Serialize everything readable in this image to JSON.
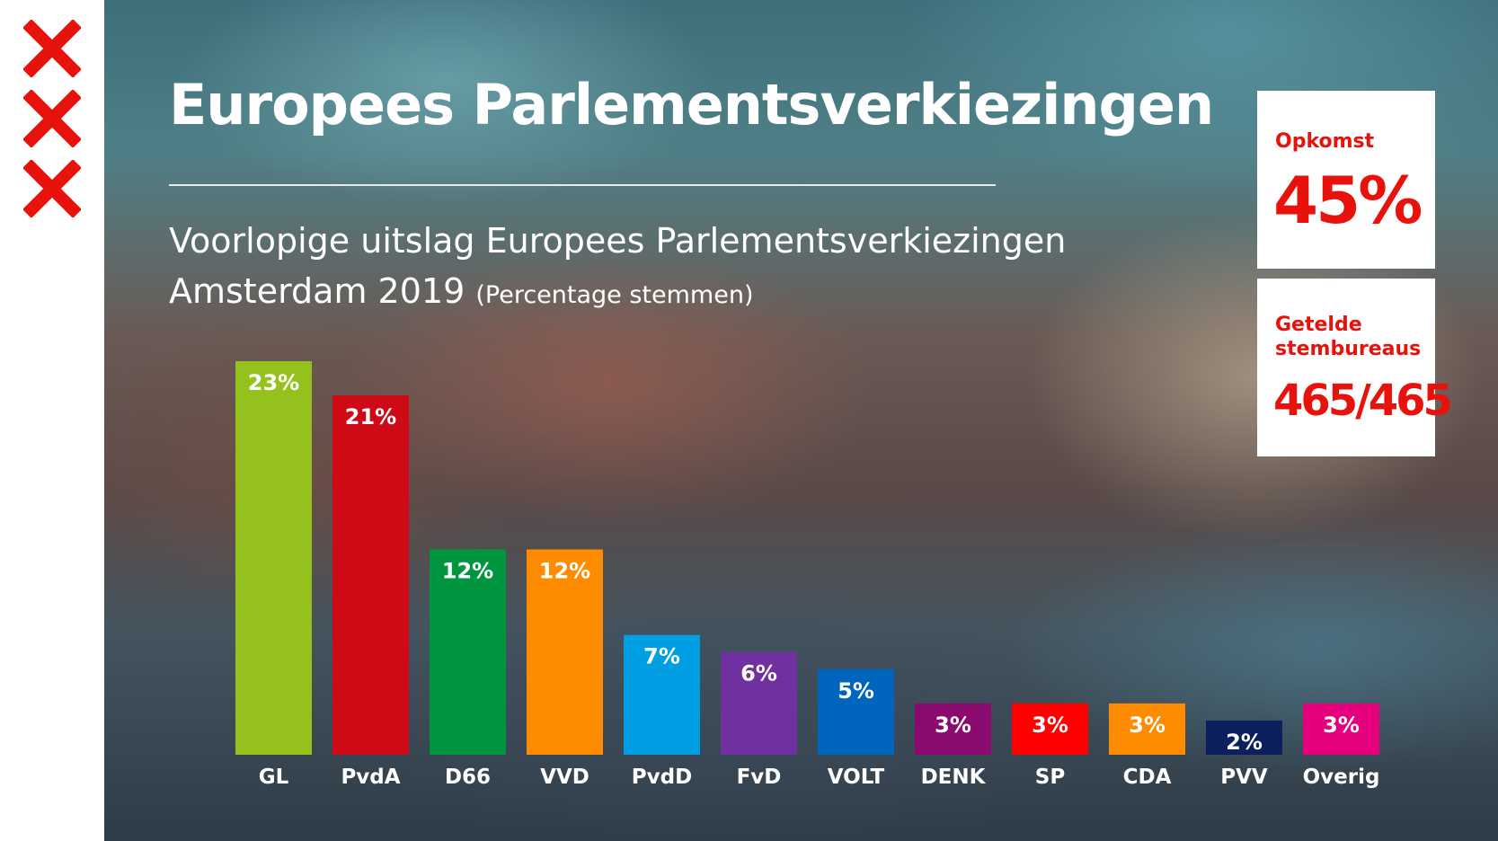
{
  "header": {
    "title": "Europees Parlementsverkiezingen",
    "subtitle_line1": "Voorlopige uitslag Europees Parlementsverkiezingen",
    "subtitle_line2": "Amsterdam 2019",
    "subtitle_note": "(Percentage stemmen)"
  },
  "logo": {
    "icon": "amsterdam-three-crosses",
    "color": "#e8120c"
  },
  "cards": {
    "turnout": {
      "label": "Opkomst",
      "value": "45%"
    },
    "stations": {
      "label": "Getelde\nstembureaus",
      "value": "465/465"
    }
  },
  "chart_data": {
    "type": "bar",
    "categories": [
      "GL",
      "PvdA",
      "D66",
      "VVD",
      "PvdD",
      "FvD",
      "VOLT",
      "DENK",
      "SP",
      "CDA",
      "PVV",
      "Overig"
    ],
    "values": [
      23,
      21,
      12,
      12,
      7,
      6,
      5,
      3,
      3,
      3,
      2,
      3
    ],
    "data_labels": [
      "23%",
      "21%",
      "12%",
      "12%",
      "7%",
      "6%",
      "5%",
      "3%",
      "3%",
      "3%",
      "2%",
      "3%"
    ],
    "colors": [
      "#95c11f",
      "#cd0a16",
      "#009640",
      "#ff8c00",
      "#009fe3",
      "#7030a0",
      "#0065bd",
      "#8a0a6e",
      "#ff0000",
      "#ff8c00",
      "#0a1f5c",
      "#e6007e"
    ],
    "unit": "%",
    "ylim": [
      0,
      23
    ],
    "grid": false,
    "legend": "none"
  }
}
